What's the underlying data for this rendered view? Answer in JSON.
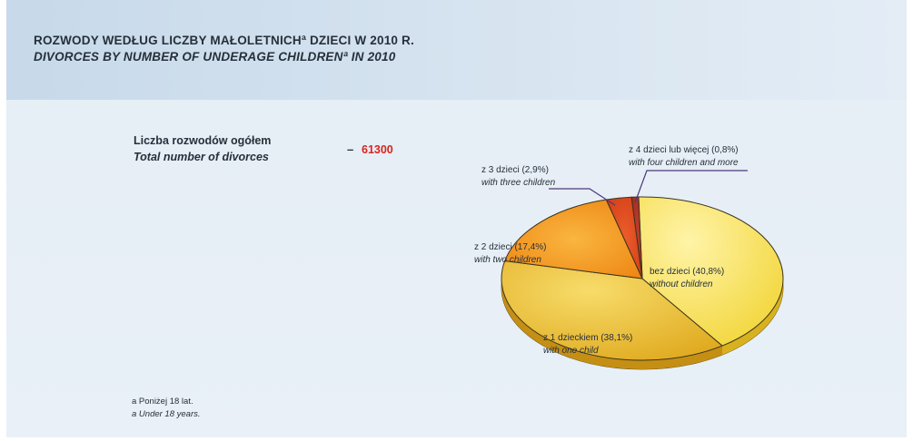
{
  "title_pl": "ROZWODY WEDŁUG LICZBY MAŁOLETNICHª DZIECI W 2010 R.",
  "title_en": "DIVORCES BY NUMBER OF UNDERAGE CHILDRENª IN 2010",
  "total": {
    "label_pl": "Liczba rozwodów ogółem",
    "label_en": "Total number of divorces",
    "dash": "–",
    "value": "61300"
  },
  "footnote": {
    "pl": "a Poniżej 18 lat.",
    "en": "a Under 18 years."
  },
  "colors": {
    "slice_without": "#f7e257",
    "slice_one": "#eec12e",
    "slice_two": "#f39a1b",
    "slice_three": "#df4b1e",
    "slice_four": "#b13225",
    "value_accent": "#d7261e",
    "leader_line": "#4a3a7a"
  },
  "chart_data": {
    "type": "pie",
    "slices": [
      {
        "name_pl": "bez dzieci (40,8%)",
        "name_en": "without children",
        "value": 40.8
      },
      {
        "name_pl": "z 1 dzieckiem (38,1%)",
        "name_en": "with one child",
        "value": 38.1
      },
      {
        "name_pl": "z 2 dzieci (17,4%)",
        "name_en": "with two children",
        "value": 17.4
      },
      {
        "name_pl": "z 3 dzieci (2,9%)",
        "name_en": "with three children",
        "value": 2.9
      },
      {
        "name_pl": "z 4 dzieci lub więcej (0,8%)",
        "name_en": "with four children and more",
        "value": 0.8
      }
    ]
  }
}
